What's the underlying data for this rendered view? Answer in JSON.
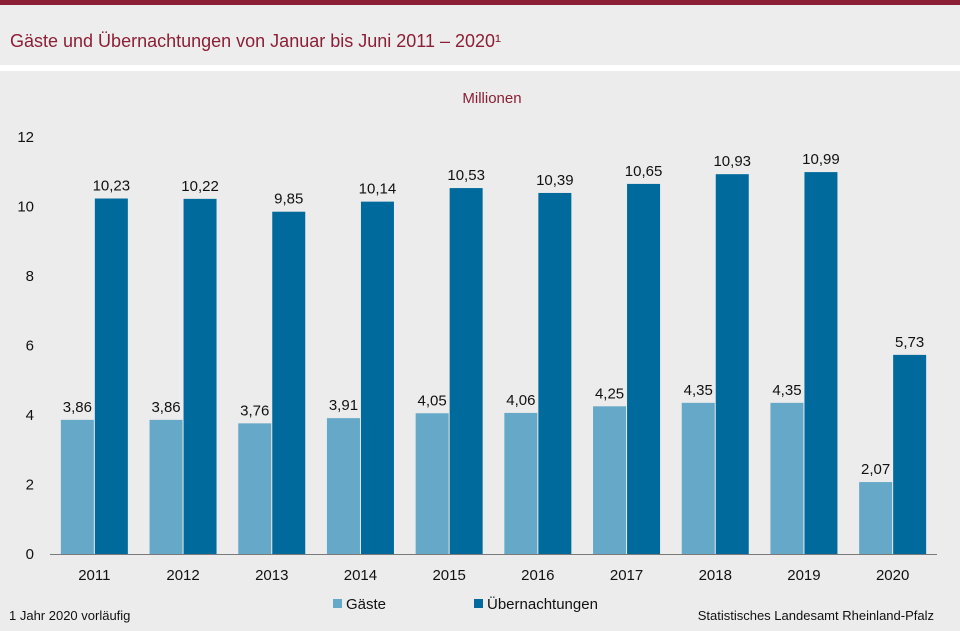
{
  "title": "Gäste und Übernachtungen von Januar bis Juni 2011 – 2020¹",
  "unit_label": "Millionen",
  "footnote": "1 Jahr 2020 vorläufig",
  "source": "Statistisches Landesamt  Rheinland-Pfalz",
  "colors": {
    "brand": "#8b1f35",
    "gaeste": "#66a8c7",
    "uebernachtungen": "#006a9c"
  },
  "chart_data": {
    "type": "bar",
    "title": "Gäste und Übernachtungen von Januar bis Juni 2011 – 2020¹",
    "ylabel": "Millionen",
    "xlabel": "",
    "ylim": [
      0,
      12
    ],
    "yticks": [
      "0",
      "2",
      "4",
      "6",
      "8",
      "10",
      "12"
    ],
    "categories": [
      "2011",
      "2012",
      "2013",
      "2014",
      "2015",
      "2016",
      "2017",
      "2018",
      "2019",
      "2020"
    ],
    "series": [
      {
        "name": "Gäste",
        "values": [
          3.86,
          3.86,
          3.76,
          3.91,
          4.05,
          4.06,
          4.25,
          4.35,
          4.35,
          2.07
        ],
        "labels": [
          "3,86",
          "3,86",
          "3,76",
          "3,91",
          "4,05",
          "4,06",
          "4,25",
          "4,35",
          "4,35",
          "2,07"
        ]
      },
      {
        "name": "Übernachtungen",
        "values": [
          10.23,
          10.22,
          9.85,
          10.14,
          10.53,
          10.39,
          10.65,
          10.93,
          10.99,
          5.73
        ],
        "labels": [
          "10,23",
          "10,22",
          "9,85",
          "10,14",
          "10,53",
          "10,39",
          "10,65",
          "10,93",
          "10,99",
          "5,73"
        ]
      }
    ],
    "legend": "bottom-center",
    "grid": false
  }
}
